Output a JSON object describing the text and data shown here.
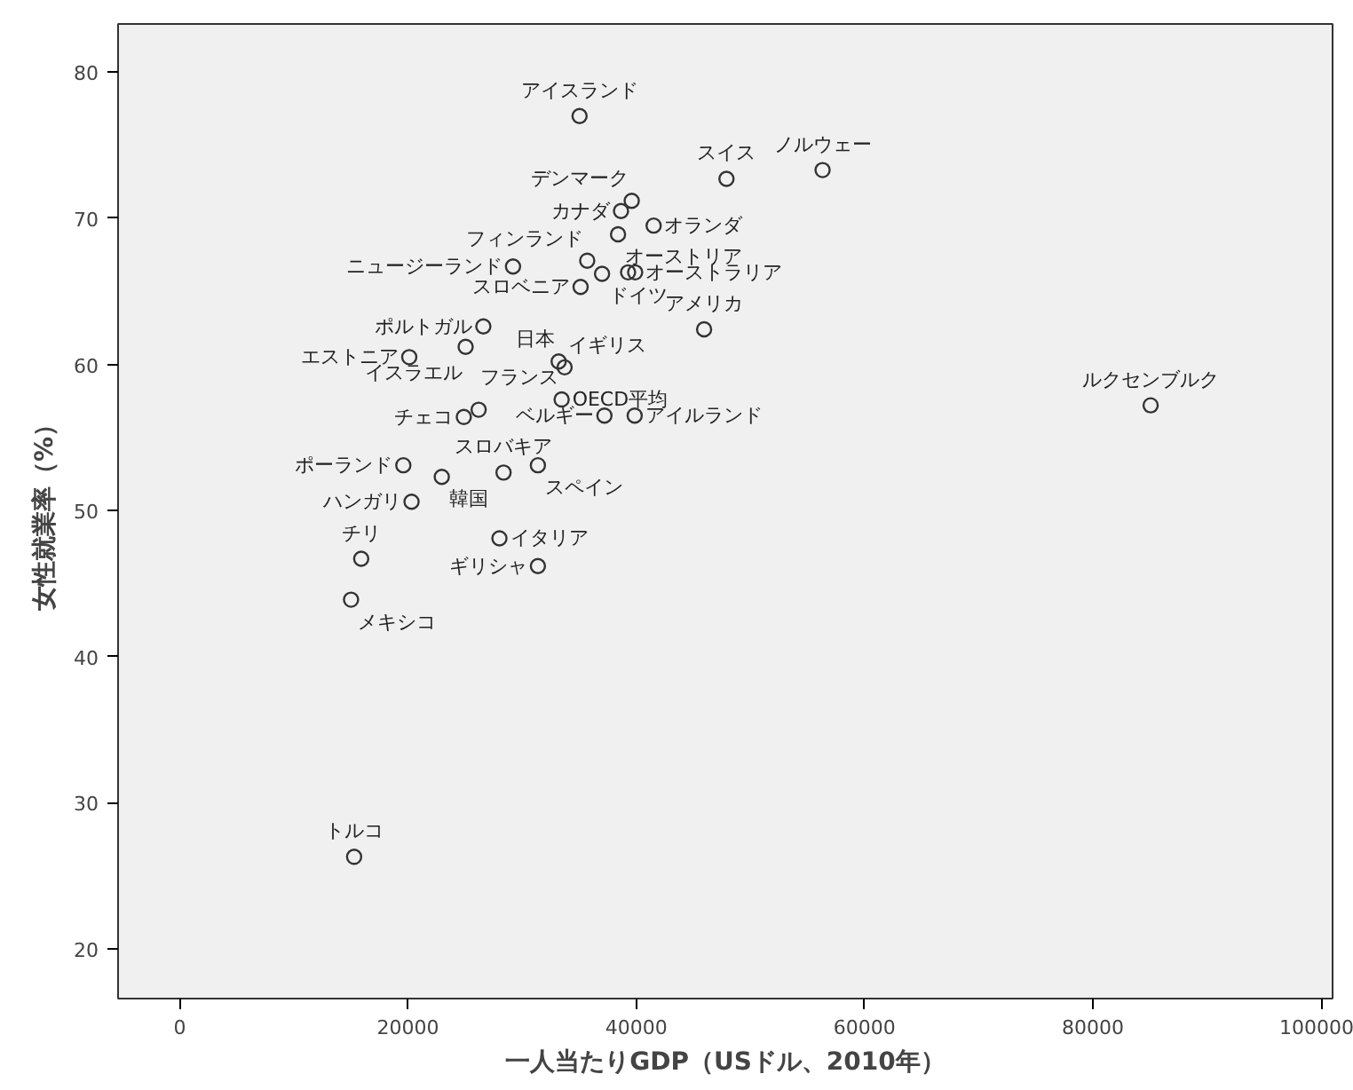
{
  "chart_data": {
    "type": "scatter",
    "xlabel": "一人当たりGDP（USドル、2010年）",
    "ylabel": "女性就業率（%）",
    "xlim": [
      -5400,
      101000
    ],
    "ylim": [
      16.6,
      83.3
    ],
    "xticks": [
      0,
      20000,
      40000,
      60000,
      80000,
      100000
    ],
    "yticks": [
      20,
      30,
      40,
      50,
      60,
      70,
      80
    ],
    "grid": false,
    "marker": "circle",
    "x": [
      35030,
      56320,
      47900,
      39600,
      38660,
      41520,
      38400,
      35700,
      29200,
      39900,
      37000,
      35120,
      45940,
      26600,
      33200,
      33720,
      20110,
      25050,
      33460,
      24890,
      37210,
      39860,
      28370,
      19590,
      22960,
      31380,
      20310,
      15900,
      28010,
      31380,
      15010,
      15280,
      85060,
      26190,
      39280
    ],
    "series": [
      {
        "color": "#333333",
        "values": [
          77.0,
          73.3,
          72.7,
          71.2,
          70.5,
          69.5,
          68.9,
          67.1,
          66.7,
          66.3,
          66.2,
          65.3,
          62.4,
          62.6,
          60.2,
          59.8,
          60.5,
          61.2,
          57.6,
          56.4,
          56.5,
          56.5,
          52.6,
          53.1,
          52.3,
          53.1,
          50.6,
          46.7,
          48.1,
          46.2,
          43.9,
          26.3,
          57.2,
          56.9,
          66.3
        ]
      }
    ],
    "annotations": [
      {
        "text": "アイスランド",
        "x": 35030,
        "y": 77.0
      },
      {
        "text": "ノルウェー",
        "x": 56320,
        "y": 73.3
      },
      {
        "text": "スイス",
        "x": 47900,
        "y": 72.7
      },
      {
        "text": "デンマーク",
        "x": 39600,
        "y": 71.2
      },
      {
        "text": "カナダ",
        "x": 38660,
        "y": 70.5
      },
      {
        "text": "オランダ",
        "x": 41520,
        "y": 69.5
      },
      {
        "text": "オーストリア",
        "x": 38400,
        "y": 68.9
      },
      {
        "text": "フィンランド",
        "x": 35700,
        "y": 67.1
      },
      {
        "text": "ニュージーランド",
        "x": 29200,
        "y": 66.7
      },
      {
        "text": "オーストラリア",
        "x": 39900,
        "y": 66.3
      },
      {
        "text": "ドイツ",
        "x": 37000,
        "y": 66.2
      },
      {
        "text": "スロベニア",
        "x": 35120,
        "y": 65.3
      },
      {
        "text": "アメリカ",
        "x": 45940,
        "y": 62.4
      },
      {
        "text": "ポルトガル",
        "x": 26600,
        "y": 62.6
      },
      {
        "text": "日本",
        "x": 33200,
        "y": 60.2
      },
      {
        "text": "イギリス",
        "x": 33720,
        "y": 59.8
      },
      {
        "text": "エストニア",
        "x": 20110,
        "y": 60.5
      },
      {
        "text": "イスラエル",
        "x": 25050,
        "y": 61.2
      },
      {
        "text": "フランス",
        "x": 33460,
        "y": 57.6
      },
      {
        "text": "OECD平均",
        "x": 33460,
        "y": 57.6
      },
      {
        "text": "チェコ",
        "x": 24890,
        "y": 56.4
      },
      {
        "text": "ベルギー",
        "x": 37210,
        "y": 56.5
      },
      {
        "text": "アイルランド",
        "x": 39860,
        "y": 56.5
      },
      {
        "text": "スロバキア",
        "x": 28370,
        "y": 52.6
      },
      {
        "text": "ポーランド",
        "x": 19590,
        "y": 53.1
      },
      {
        "text": "韓国",
        "x": 22960,
        "y": 52.3
      },
      {
        "text": "スペイン",
        "x": 31380,
        "y": 53.1
      },
      {
        "text": "ハンガリ",
        "x": 20310,
        "y": 50.6
      },
      {
        "text": "チリ",
        "x": 15900,
        "y": 46.7
      },
      {
        "text": "イタリア",
        "x": 28010,
        "y": 48.1
      },
      {
        "text": "ギリシャ",
        "x": 31380,
        "y": 46.2
      },
      {
        "text": "メキシコ",
        "x": 15010,
        "y": 43.9
      },
      {
        "text": "トルコ",
        "x": 15280,
        "y": 26.3
      },
      {
        "text": "ルクセンブルク",
        "x": 85060,
        "y": 57.2
      }
    ]
  }
}
